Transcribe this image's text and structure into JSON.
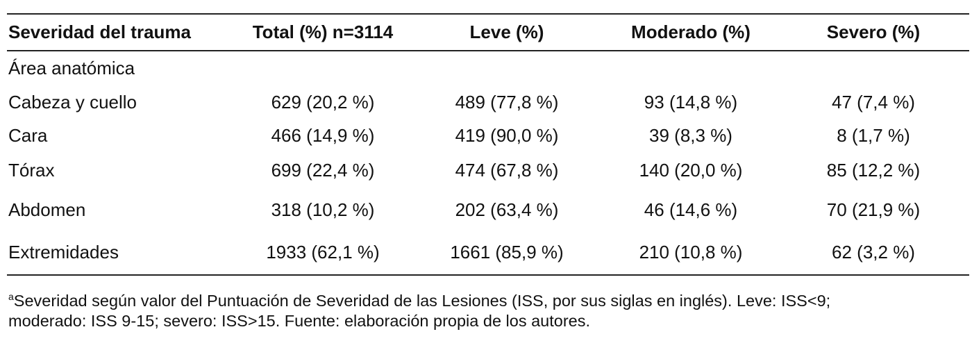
{
  "table": {
    "headers": [
      "Severidad del trauma",
      "Total (%) n=3114",
      "Leve (%)",
      "Moderado (%)",
      "Severo (%)"
    ],
    "section": "Área anatómica",
    "rows": [
      [
        "Cabeza y cuello",
        "629 (20,2 %)",
        "489 (77,8 %)",
        "93 (14,8 %)",
        "47 (7,4 %)"
      ],
      [
        "Cara",
        "466 (14,9 %)",
        "419 (90,0 %)",
        "39 (8,3 %)",
        "8 (1,7 %)"
      ],
      [
        "Tórax",
        "699 (22,4 %)",
        "474 (67,8 %)",
        "140 (20,0 %)",
        "85 (12,2 %)"
      ],
      [
        "Abdomen",
        "318 (10,2 %)",
        "202 (63,4 %)",
        "46 (14,6 %)",
        "70 (21,9 %)"
      ],
      [
        "Extremidades",
        "1933 (62,1 %)",
        "1661 (85,9 %)",
        "210 (10,8 %)",
        "62 (3,2 %)"
      ]
    ]
  },
  "footnote": {
    "marker": "a",
    "line1": "Severidad según valor del Puntuación de Severidad de las Lesiones (ISS, por sus siglas en inglés). Leve: ISS<9;",
    "line2": "moderado: ISS 9-15; severo: ISS>15. Fuente: elaboración propia de los autores."
  }
}
